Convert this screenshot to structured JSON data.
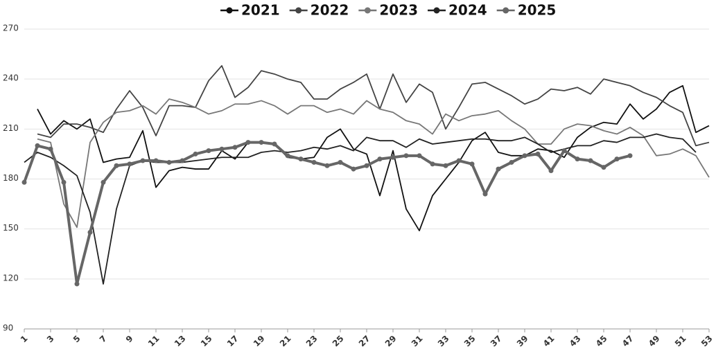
{
  "chart_data": {
    "type": "line",
    "x": [
      1,
      2,
      3,
      4,
      5,
      6,
      7,
      8,
      9,
      10,
      11,
      12,
      13,
      14,
      15,
      16,
      17,
      18,
      19,
      20,
      21,
      22,
      23,
      24,
      25,
      26,
      27,
      28,
      29,
      30,
      31,
      32,
      33,
      34,
      35,
      36,
      37,
      38,
      39,
      40,
      41,
      42,
      43,
      44,
      45,
      46,
      47,
      48,
      49,
      50,
      51,
      52,
      53
    ],
    "xlim": [
      1,
      53
    ],
    "xticks": [
      1,
      3,
      5,
      7,
      9,
      11,
      13,
      15,
      17,
      19,
      21,
      23,
      25,
      27,
      29,
      31,
      33,
      35,
      37,
      39,
      41,
      43,
      45,
      47,
      49,
      51,
      53
    ],
    "ylim": [
      90,
      270
    ],
    "yticks": [
      90,
      120,
      150,
      180,
      210,
      240,
      270
    ],
    "grid": true,
    "legend": "top",
    "series": [
      {
        "name": "2021",
        "color": "#111111",
        "width": 1.8,
        "markers": false,
        "values": [
          null,
          222,
          207,
          215,
          210,
          216,
          190,
          192,
          193,
          209,
          175,
          185,
          187,
          186,
          186,
          197,
          192,
          202,
          202,
          201,
          193,
          192,
          193,
          205,
          210,
          198,
          195,
          170,
          197,
          162,
          149,
          170,
          180,
          190,
          203,
          208,
          196,
          194,
          194,
          198,
          197,
          193,
          205,
          211,
          214,
          213,
          225,
          216,
          222,
          232,
          236,
          208,
          212
        ]
      },
      {
        "name": "2022",
        "color": "#444444",
        "width": 1.8,
        "markers": false,
        "values": [
          null,
          207,
          205,
          213,
          213,
          211,
          208,
          222,
          233,
          223,
          206,
          224,
          224,
          223,
          239,
          248,
          229,
          235,
          245,
          243,
          240,
          238,
          228,
          228,
          234,
          238,
          243,
          222,
          243,
          226,
          237,
          232,
          210,
          223,
          237,
          238,
          234,
          230,
          225,
          228,
          234,
          233,
          235,
          231,
          240,
          238,
          236,
          232,
          229,
          224,
          220,
          200,
          202
        ]
      },
      {
        "name": "2023",
        "color": "#777777",
        "width": 1.8,
        "markers": false,
        "values": [
          null,
          204,
          202,
          165,
          151,
          202,
          214,
          220,
          221,
          224,
          219,
          228,
          226,
          223,
          219,
          221,
          225,
          225,
          227,
          224,
          219,
          224,
          224,
          220,
          222,
          219,
          227,
          222,
          220,
          215,
          213,
          207,
          219,
          215,
          218,
          219,
          221,
          215,
          210,
          201,
          201,
          210,
          213,
          212,
          209,
          207,
          211,
          206,
          194,
          195,
          198,
          194,
          181
        ]
      },
      {
        "name": "2024",
        "color": "#222222",
        "width": 1.8,
        "markers": false,
        "values": [
          190,
          196,
          193,
          188,
          182,
          160,
          117,
          162,
          188,
          191,
          190,
          190,
          190,
          191,
          192,
          193,
          193,
          193,
          196,
          197,
          196,
          197,
          199,
          198,
          200,
          197,
          205,
          203,
          203,
          199,
          204,
          201,
          202,
          203,
          204,
          204,
          203,
          203,
          205,
          201,
          196,
          198,
          200,
          200,
          203,
          202,
          205,
          205,
          207,
          205,
          204,
          196,
          null
        ]
      },
      {
        "name": "2025",
        "color": "#666666",
        "width": 4,
        "markers": true,
        "values": [
          178,
          200,
          198,
          178,
          117,
          148,
          178,
          188,
          189,
          191,
          191,
          190,
          191,
          195,
          197,
          198,
          199,
          202,
          202,
          201,
          194,
          192,
          190,
          188,
          190,
          186,
          188,
          192,
          193,
          194,
          194,
          189,
          188,
          191,
          189,
          171,
          186,
          190,
          194,
          195,
          185,
          197,
          192,
          191,
          187,
          192,
          194,
          null,
          null,
          null,
          null,
          null,
          null
        ]
      }
    ]
  }
}
